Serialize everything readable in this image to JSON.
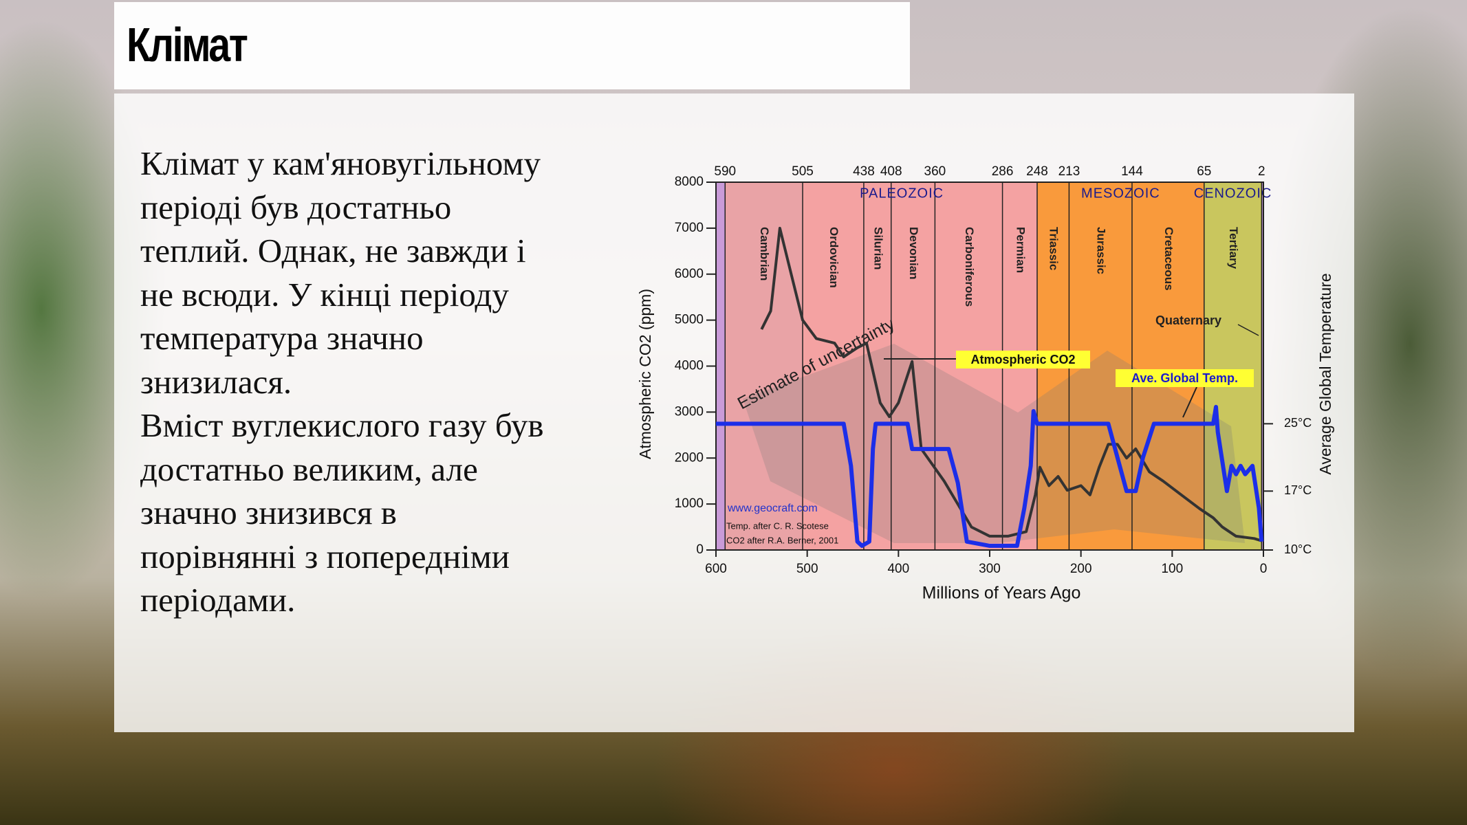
{
  "slide": {
    "title": "Клімат",
    "body_lines": [
      "Клімат у кам'яновугільному",
      "періоді був достатньо",
      "теплий. Однак, не завжди і",
      "не всюди. У кінці періоду",
      "температура значно",
      "знизилася.",
      "Вміст вуглекислого газу був",
      "достатньо великим, але",
      "значно знизився в",
      "порівнянні з попередніми",
      "періодами."
    ]
  },
  "chart_data": {
    "type": "line",
    "x_label": "Millions of Years Ago",
    "y_label": "Atmospheric CO2 (ppm)",
    "y2_label": "Average Global Temperature",
    "xlim": [
      600,
      0
    ],
    "xticks": [
      600,
      500,
      400,
      300,
      200,
      100,
      0
    ],
    "xticks_top": [
      590,
      505,
      438,
      408,
      360,
      286,
      248,
      213,
      144,
      65,
      2
    ],
    "ylim": [
      0,
      8000
    ],
    "yticks": [
      0,
      1000,
      2000,
      3000,
      4000,
      5000,
      6000,
      7000,
      8000
    ],
    "y2lim": [
      10,
      53.7
    ],
    "y2ticks": [
      {
        "value": 10,
        "label": "10°C"
      },
      {
        "value": 17,
        "label": "17°C"
      },
      {
        "value": 25,
        "label": "25°C"
      }
    ],
    "periods": [
      {
        "name": "Cambrian",
        "color": "#e9a3a6"
      },
      {
        "name": "Ordovician",
        "color": "#f4a2a2"
      },
      {
        "name": "Silurian",
        "color": "#f4a2a2"
      },
      {
        "name": "Devonian",
        "color": "#f4a2a2"
      },
      {
        "name": "Carboniferous",
        "color": "#f4a2a2"
      },
      {
        "name": "Permian",
        "color": "#f4a2a2"
      },
      {
        "name": "Triassic",
        "color": "#f99a3c"
      },
      {
        "name": "Jurassic",
        "color": "#f99a3c"
      },
      {
        "name": "Cretaceous",
        "color": "#f99a3c"
      },
      {
        "name": "Tertiary",
        "color": "#c9c65e"
      }
    ],
    "eras": [
      "PALEOZOIC",
      "MESOZOIC",
      "CENOZOIC"
    ],
    "annotations": {
      "uncertainty": "Estimate of uncertainty",
      "quaternary": "Quaternary",
      "source_url": "www.geocraft.com",
      "temp_source": "Temp. after C. R. Scotese",
      "co2_source": "CO2 after R.A. Berner, 2001"
    },
    "series": [
      {
        "name": "Atmospheric CO2",
        "color": "#333333",
        "x": [
          550,
          540,
          530,
          520,
          505,
          490,
          470,
          460,
          445,
          435,
          420,
          410,
          400,
          385,
          375,
          350,
          320,
          300,
          280,
          260,
          250,
          245,
          235,
          225,
          215,
          200,
          190,
          180,
          170,
          160,
          150,
          140,
          125,
          110,
          90,
          70,
          55,
          45,
          30,
          10,
          2
        ],
        "values": [
          4800,
          5200,
          7000,
          6200,
          5000,
          4600,
          4500,
          4200,
          4400,
          4500,
          3200,
          2900,
          3200,
          4100,
          2200,
          1500,
          500,
          300,
          300,
          400,
          1200,
          1800,
          1400,
          1600,
          1300,
          1400,
          1200,
          1800,
          2300,
          2300,
          2000,
          2200,
          1700,
          1500,
          1200,
          900,
          700,
          500,
          300,
          250,
          200
        ]
      },
      {
        "name": "Ave. Global Temp.",
        "color": "#1c2ee8",
        "axis": "y2",
        "x": [
          600,
          460,
          452,
          445,
          440,
          432,
          428,
          425,
          390,
          385,
          345,
          335,
          325,
          300,
          270,
          262,
          255,
          252,
          248,
          170,
          160,
          150,
          140,
          132,
          120,
          60,
          55,
          52,
          50,
          40,
          35,
          30,
          25,
          20,
          12,
          5,
          2
        ],
        "values": [
          25,
          25,
          20,
          11,
          10.5,
          11,
          22,
          25,
          25,
          22,
          22,
          18,
          11,
          10.5,
          10.5,
          15,
          20,
          26.5,
          25,
          25,
          21,
          17,
          17,
          21,
          25,
          25,
          25,
          27,
          24,
          17,
          20,
          19,
          20,
          19,
          20,
          15,
          11
        ]
      }
    ]
  }
}
